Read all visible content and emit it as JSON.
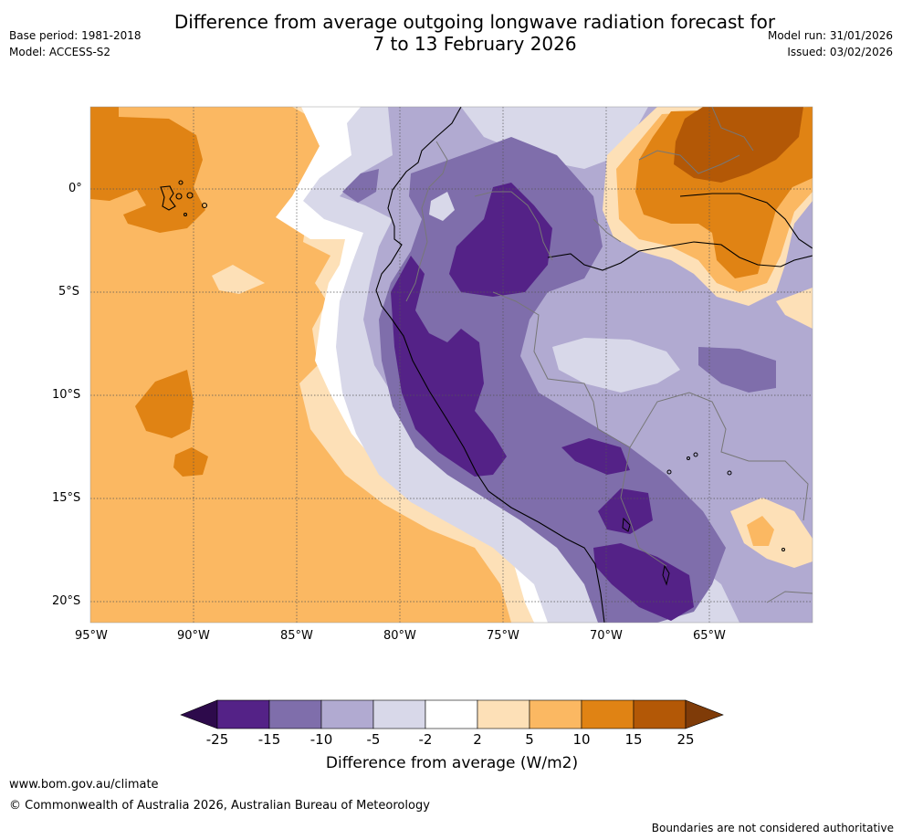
{
  "title": {
    "line1": "Difference from average outgoing longwave radiation forecast for",
    "line2": "7 to 13 February 2026"
  },
  "meta": {
    "base_period": "Base period: 1981-2018",
    "model": "Model: ACCESS-S2",
    "model_run": "Model run: 31/01/2026",
    "issued": "Issued: 03/02/2026"
  },
  "axes": {
    "lat_labels": [
      "0°",
      "5°S",
      "10°S",
      "15°S",
      "20°S"
    ],
    "lon_labels": [
      "95°W",
      "90°W",
      "85°W",
      "80°W",
      "75°W",
      "70°W",
      "65°W"
    ]
  },
  "colorbar": {
    "title": "Difference from average (W/m2)",
    "tick_labels": [
      "-25",
      "-15",
      "-10",
      "-5",
      "-2",
      "2",
      "5",
      "10",
      "15",
      "25"
    ],
    "colors": [
      "#2d0a4b",
      "#542287",
      "#7f6eab",
      "#b1aad1",
      "#d8d8e9",
      "#ffffff",
      "#fde0b7",
      "#fbb862",
      "#e08314",
      "#b35806",
      "#7f3b08"
    ]
  },
  "footer": {
    "website": "www.bom.gov.au/climate",
    "copyright": "© Commonwealth of Australia 2026, Australian Bureau of Meteorology",
    "disclaimer": "Boundaries are not considered authoritative"
  }
}
